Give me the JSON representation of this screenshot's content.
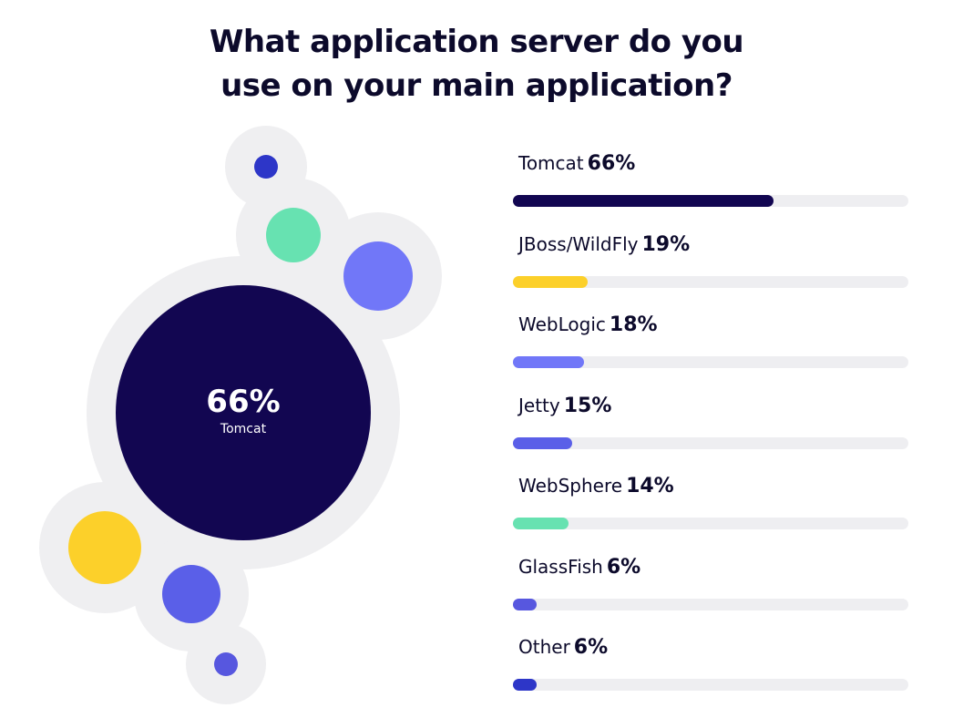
{
  "chart_data": {
    "type": "bar",
    "title_lines": [
      "What application server do you",
      "use on your main application?"
    ],
    "center": {
      "value": "66%",
      "label": "Tomcat"
    },
    "categories": [
      "Tomcat",
      "JBoss/WildFly",
      "WebLogic",
      "Jetty",
      "WebSphere",
      "GlassFish",
      "Other"
    ],
    "values": [
      66,
      19,
      18,
      15,
      14,
      6,
      6
    ],
    "value_labels": [
      "66%",
      "19%",
      "18%",
      "15%",
      "14%",
      "6%",
      "6%"
    ],
    "colors": [
      "#120651",
      "#fcd02a",
      "#7177f8",
      "#5a5fe8",
      "#67e2b1",
      "#5757df",
      "#2d36c8"
    ],
    "track_color": "#eeeef1",
    "bubble_halo_color": "#efeff1",
    "xlim": [
      0,
      100
    ],
    "grid": false
  }
}
